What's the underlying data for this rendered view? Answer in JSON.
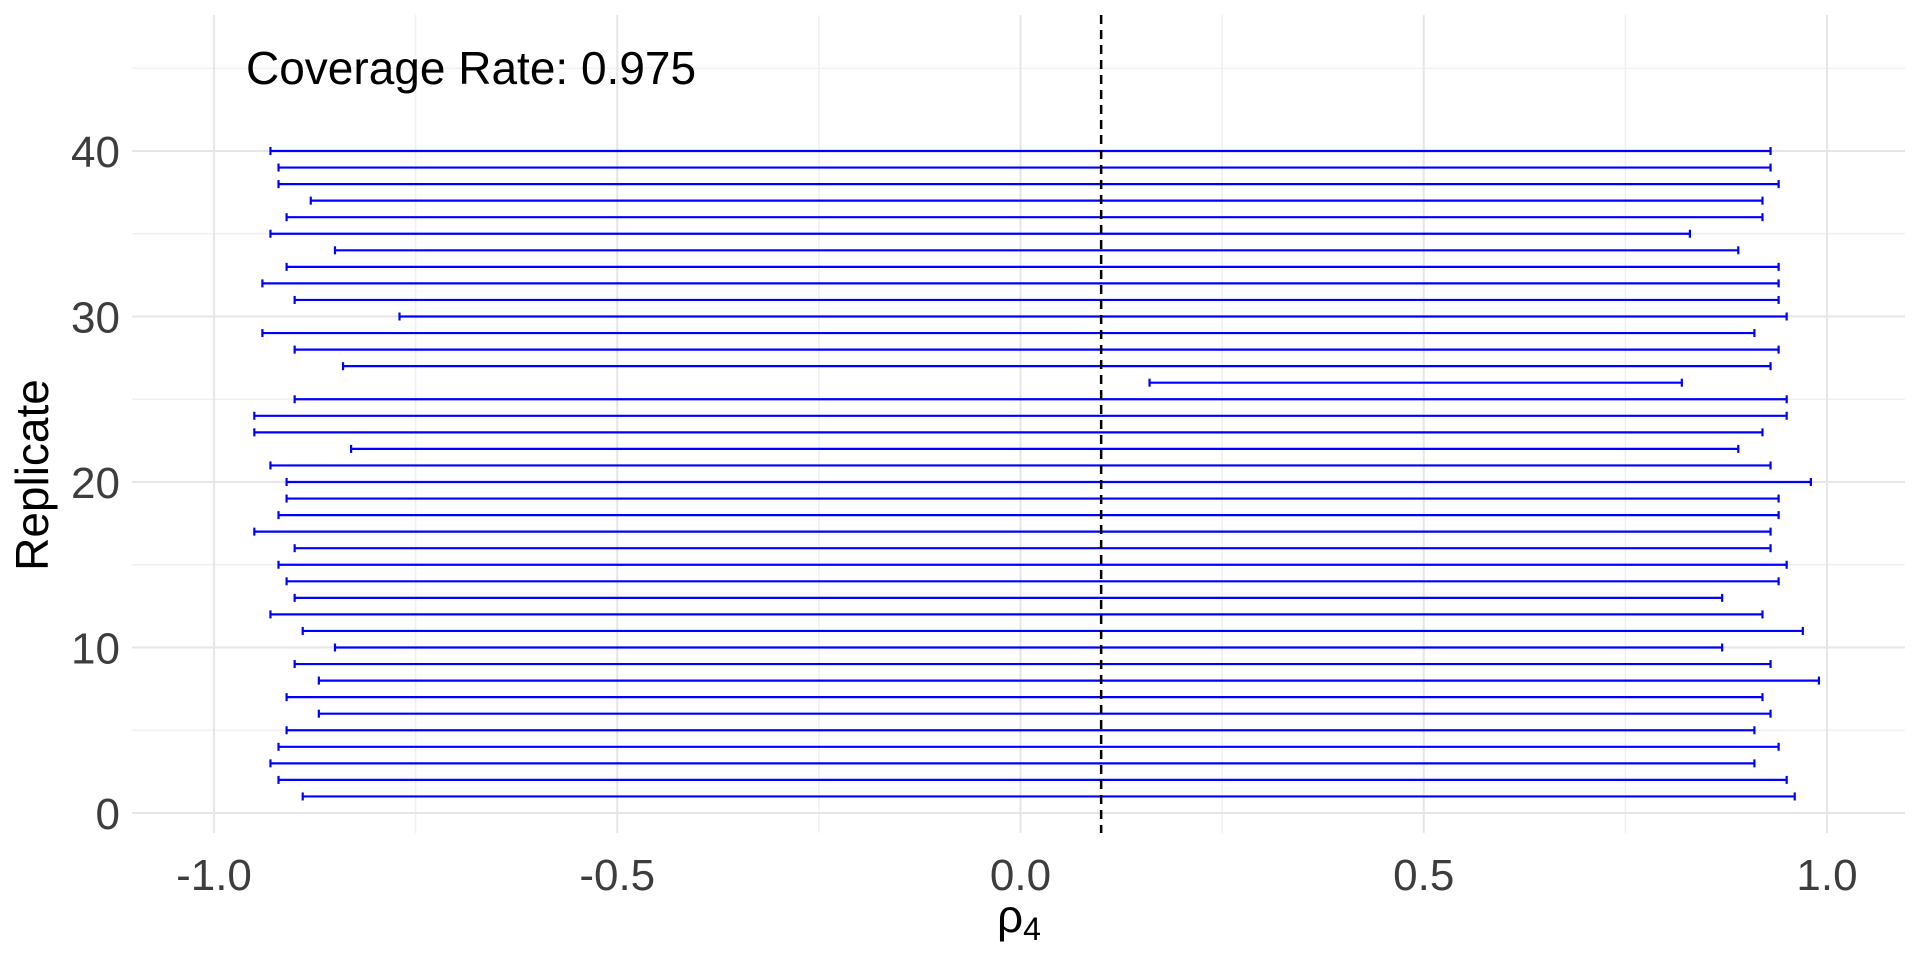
{
  "chart_data": {
    "type": "errorbar",
    "title": "",
    "annotation": "Coverage Rate: 0.975",
    "xlabel": "ρ",
    "xlabel_subscript": "4",
    "ylabel": "Replicate",
    "xlim": [
      -1.05,
      1.19
    ],
    "ylim": [
      -1,
      46
    ],
    "x_ticks": [
      -1.0,
      -0.5,
      0.0,
      0.5,
      1.0
    ],
    "x_tick_labels": [
      "-1.0",
      "-0.5",
      "0.0",
      "0.5",
      "1.0"
    ],
    "y_ticks": [
      0,
      10,
      20,
      30,
      40
    ],
    "y_tick_labels": [
      "0",
      "10",
      "20",
      "30",
      "40"
    ],
    "reference_line": {
      "x": 0.1,
      "style": "dashed",
      "color": "#000000"
    },
    "interval_color": "#0000ff",
    "grid": true,
    "intervals": [
      {
        "replicate": 1,
        "lower": -0.89,
        "upper": 0.96
      },
      {
        "replicate": 2,
        "lower": -0.92,
        "upper": 0.95
      },
      {
        "replicate": 3,
        "lower": -0.93,
        "upper": 0.91
      },
      {
        "replicate": 4,
        "lower": -0.92,
        "upper": 0.94
      },
      {
        "replicate": 5,
        "lower": -0.91,
        "upper": 0.91
      },
      {
        "replicate": 6,
        "lower": -0.87,
        "upper": 0.93
      },
      {
        "replicate": 7,
        "lower": -0.91,
        "upper": 0.92
      },
      {
        "replicate": 8,
        "lower": -0.87,
        "upper": 0.99
      },
      {
        "replicate": 9,
        "lower": -0.9,
        "upper": 0.93
      },
      {
        "replicate": 10,
        "lower": -0.85,
        "upper": 0.87
      },
      {
        "replicate": 11,
        "lower": -0.89,
        "upper": 0.97
      },
      {
        "replicate": 12,
        "lower": -0.93,
        "upper": 0.92
      },
      {
        "replicate": 13,
        "lower": -0.9,
        "upper": 0.87
      },
      {
        "replicate": 14,
        "lower": -0.91,
        "upper": 0.94
      },
      {
        "replicate": 15,
        "lower": -0.92,
        "upper": 0.95
      },
      {
        "replicate": 16,
        "lower": -0.9,
        "upper": 0.93
      },
      {
        "replicate": 17,
        "lower": -0.95,
        "upper": 0.93
      },
      {
        "replicate": 18,
        "lower": -0.92,
        "upper": 0.94
      },
      {
        "replicate": 19,
        "lower": -0.91,
        "upper": 0.94
      },
      {
        "replicate": 20,
        "lower": -0.91,
        "upper": 0.98
      },
      {
        "replicate": 21,
        "lower": -0.93,
        "upper": 0.93
      },
      {
        "replicate": 22,
        "lower": -0.83,
        "upper": 0.89
      },
      {
        "replicate": 23,
        "lower": -0.95,
        "upper": 0.92
      },
      {
        "replicate": 24,
        "lower": -0.95,
        "upper": 0.95
      },
      {
        "replicate": 25,
        "lower": -0.9,
        "upper": 0.95
      },
      {
        "replicate": 26,
        "lower": 0.16,
        "upper": 0.82
      },
      {
        "replicate": 27,
        "lower": -0.84,
        "upper": 0.93
      },
      {
        "replicate": 28,
        "lower": -0.9,
        "upper": 0.94
      },
      {
        "replicate": 29,
        "lower": -0.94,
        "upper": 0.91
      },
      {
        "replicate": 30,
        "lower": -0.77,
        "upper": 0.95
      },
      {
        "replicate": 31,
        "lower": -0.9,
        "upper": 0.94
      },
      {
        "replicate": 32,
        "lower": -0.94,
        "upper": 0.94
      },
      {
        "replicate": 33,
        "lower": -0.91,
        "upper": 0.94
      },
      {
        "replicate": 34,
        "lower": -0.85,
        "upper": 0.89
      },
      {
        "replicate": 35,
        "lower": -0.93,
        "upper": 0.83
      },
      {
        "replicate": 36,
        "lower": -0.91,
        "upper": 0.92
      },
      {
        "replicate": 37,
        "lower": -0.88,
        "upper": 0.92
      },
      {
        "replicate": 38,
        "lower": -0.92,
        "upper": 0.94
      },
      {
        "replicate": 39,
        "lower": -0.92,
        "upper": 0.93
      },
      {
        "replicate": 40,
        "lower": -0.93,
        "upper": 0.93
      }
    ]
  }
}
